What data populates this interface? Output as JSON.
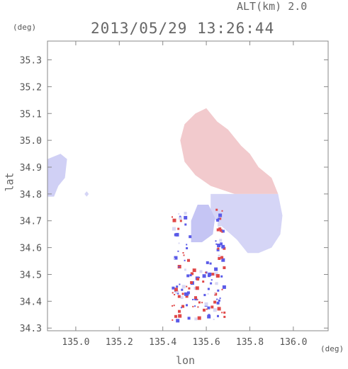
{
  "header": {
    "altitude_label": "ALT(km) 2.0",
    "timestamp": "2013/05/29 13:26:44"
  },
  "chart_data": {
    "type": "heatmap",
    "title": "2013/05/29 13:26:44",
    "xlabel": "lon",
    "ylabel": "lat",
    "x_unit": "(deg)",
    "y_unit": "(deg)",
    "xlim": [
      134.87,
      136.16
    ],
    "ylim": [
      34.29,
      35.37
    ],
    "x_ticks": [
      135.0,
      135.2,
      135.4,
      135.6,
      135.8,
      136.0
    ],
    "x_tick_labels": [
      "135.0",
      "135.2",
      "135.4",
      "135.6",
      "135.8",
      "136.0"
    ],
    "y_ticks": [
      34.3,
      34.4,
      34.5,
      34.6,
      34.7,
      34.8,
      34.9,
      35.0,
      35.1,
      35.2,
      35.3
    ],
    "y_tick_labels": [
      "34.3",
      "34.4",
      "34.5",
      "34.6",
      "34.7",
      "34.8",
      "34.9",
      "35.0",
      "35.1",
      "35.2",
      "35.3"
    ],
    "grid": false,
    "colormap": {
      "positive": "#f08c8c",
      "zero": "#f4f4f8",
      "negative": "#8c8cf0"
    },
    "regions": [
      {
        "name": "west-blob",
        "tone": -0.35,
        "polygon": [
          [
            134.87,
            34.79
          ],
          [
            134.87,
            34.93
          ],
          [
            134.93,
            34.95
          ],
          [
            134.96,
            34.93
          ],
          [
            134.95,
            34.86
          ],
          [
            134.92,
            34.83
          ],
          [
            134.9,
            34.79
          ]
        ]
      },
      {
        "name": "west-speck",
        "tone": -0.3,
        "polygon": [
          [
            135.04,
            34.8
          ],
          [
            135.05,
            34.81
          ],
          [
            135.06,
            34.8
          ],
          [
            135.05,
            34.79
          ]
        ]
      },
      {
        "name": "main-north",
        "tone": 0.4,
        "polygon": [
          [
            135.55,
            35.1
          ],
          [
            135.6,
            35.12
          ],
          [
            135.65,
            35.07
          ],
          [
            135.7,
            35.04
          ],
          [
            135.76,
            34.98
          ],
          [
            135.8,
            34.95
          ],
          [
            135.84,
            34.9
          ],
          [
            135.9,
            34.86
          ],
          [
            135.93,
            34.8
          ],
          [
            135.73,
            34.8
          ],
          [
            135.62,
            34.83
          ],
          [
            135.55,
            34.87
          ],
          [
            135.5,
            34.92
          ],
          [
            135.48,
            35.0
          ],
          [
            135.5,
            35.06
          ]
        ]
      },
      {
        "name": "main-south",
        "tone": -0.3,
        "polygon": [
          [
            135.62,
            34.8
          ],
          [
            135.93,
            34.8
          ],
          [
            135.95,
            34.72
          ],
          [
            135.94,
            34.65
          ],
          [
            135.9,
            34.6
          ],
          [
            135.84,
            34.58
          ],
          [
            135.79,
            34.58
          ],
          [
            135.74,
            34.63
          ],
          [
            135.67,
            34.68
          ],
          [
            135.62,
            34.72
          ]
        ]
      },
      {
        "name": "center-blue",
        "tone": -0.45,
        "polygon": [
          [
            135.53,
            34.62
          ],
          [
            135.53,
            34.7
          ],
          [
            135.56,
            34.76
          ],
          [
            135.61,
            34.76
          ],
          [
            135.64,
            34.71
          ],
          [
            135.63,
            34.65
          ],
          [
            135.58,
            34.62
          ]
        ]
      }
    ]
  }
}
